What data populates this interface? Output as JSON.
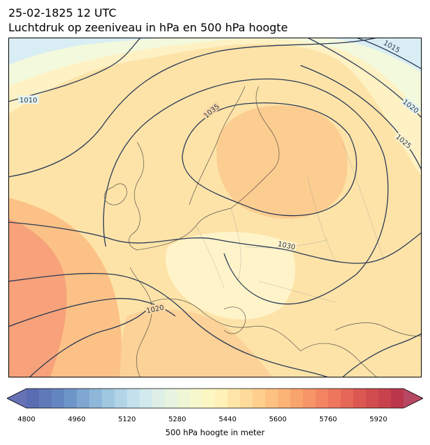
{
  "title": {
    "line1": "25-02-1825 12 UTC",
    "line2": "Luchtdruk op zeeniveau in hPa en 500 hPa hoogte"
  },
  "isobar_labels": [
    "1010",
    "1015",
    "1020",
    "1025",
    "1030",
    "1035",
    "1020",
    "1030"
  ],
  "colorbar": {
    "min": 4800,
    "max": 6000,
    "step": 40,
    "ticks": [
      "4800",
      "4960",
      "5120",
      "5280",
      "5440",
      "5600",
      "5760",
      "5920"
    ],
    "label": "500 hPa hoogte in meter",
    "colormap": "RdYlBu_r"
  }
}
